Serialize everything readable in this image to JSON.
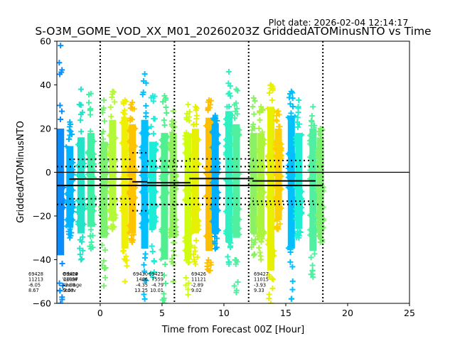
{
  "chart_data": {
    "type": "scatter",
    "title": "S-O3M_GOME_VOD_XX_M01_20260203Z GriddedATOMinusNTO vs Time",
    "plot_date": "Plot date: 2026-02-04 12:14:17",
    "xlabel": "Time from Forecast 00Z [Hour]",
    "ylabel": "GriddedATOMinusNTO",
    "xlim": [
      -3.5,
      25
    ],
    "ylim": [
      -60,
      60
    ],
    "xticks": [
      0,
      5,
      10,
      15,
      20,
      25
    ],
    "xtick_labels": [
      "0",
      "5",
      "10",
      "15",
      "20",
      "25"
    ],
    "yticks": [
      60,
      40,
      20,
      0,
      -20,
      -40,
      -60
    ],
    "ytick_labels": [
      "60",
      "40",
      "20",
      "0",
      "−20",
      "−40",
      "−60"
    ],
    "vertical_dotted_lines_x": [
      0,
      6,
      12,
      18
    ],
    "zero_line": 0,
    "marker": "+",
    "columns": [
      {
        "x": -3.2,
        "color": "#0a8cff",
        "ymin": -60,
        "ymax": 58,
        "core_min": -38,
        "core_max": 20
      },
      {
        "x": -2.45,
        "color": "#00b4ff",
        "ymin": -30,
        "ymax": 23,
        "core_min": -25,
        "core_max": 12
      },
      {
        "x": -1.55,
        "color": "#22e2c8",
        "ymin": -40,
        "ymax": 38,
        "core_min": -28,
        "core_max": 16
      },
      {
        "x": -0.75,
        "color": "#40f0a4",
        "ymin": -35,
        "ymax": 36,
        "core_min": -25,
        "core_max": 18
      },
      {
        "x": 0.3,
        "color": "#7cf070",
        "ymin": -52,
        "ymax": 33,
        "core_min": -30,
        "core_max": 14
      },
      {
        "x": 1.0,
        "color": "#b4f83a",
        "ymin": -26,
        "ymax": 37,
        "core_min": -22,
        "core_max": 24
      },
      {
        "x": 2.0,
        "color": "#eef000",
        "ymin": -50,
        "ymax": 33,
        "core_min": -35,
        "core_max": 25
      },
      {
        "x": 2.6,
        "color": "#ffc400",
        "ymin": -32,
        "ymax": 32,
        "core_min": -28,
        "core_max": 22
      },
      {
        "x": 3.6,
        "color": "#00c0ff",
        "ymin": -58,
        "ymax": 45,
        "core_min": -35,
        "core_max": 24
      },
      {
        "x": 4.25,
        "color": "#1cecd8",
        "ymin": -48,
        "ymax": 35,
        "core_min": -26,
        "core_max": 14
      },
      {
        "x": 5.2,
        "color": "#50f090",
        "ymin": -60,
        "ymax": 35,
        "core_min": -40,
        "core_max": 18
      },
      {
        "x": 5.9,
        "color": "#8cf058",
        "ymin": -50,
        "ymax": 28,
        "core_min": -30,
        "core_max": 18
      },
      {
        "x": 7.1,
        "color": "#d0fc10",
        "ymin": -56,
        "ymax": 31,
        "core_min": -40,
        "core_max": 18
      },
      {
        "x": 7.7,
        "color": "#e6f000",
        "ymin": -42,
        "ymax": 30,
        "core_min": -28,
        "core_max": 20
      },
      {
        "x": 8.8,
        "color": "#ffbe00",
        "ymin": -45,
        "ymax": 33,
        "core_min": -36,
        "core_max": 25
      },
      {
        "x": 9.3,
        "color": "#00b0ff",
        "ymin": -35,
        "ymax": 26,
        "core_min": -28,
        "core_max": 22
      },
      {
        "x": 10.4,
        "color": "#2ef0c0",
        "ymin": -42,
        "ymax": 46,
        "core_min": -32,
        "core_max": 28
      },
      {
        "x": 11.0,
        "color": "#50f0a0",
        "ymin": -55,
        "ymax": 38,
        "core_min": -30,
        "core_max": 22
      },
      {
        "x": 12.4,
        "color": "#8cf064",
        "ymin": -38,
        "ymax": 34,
        "core_min": -28,
        "core_max": 18
      },
      {
        "x": 13.0,
        "color": "#aaf440",
        "ymin": -40,
        "ymax": 30,
        "core_min": -30,
        "core_max": 18
      },
      {
        "x": 13.8,
        "color": "#e6f000",
        "ymin": -60,
        "ymax": 40,
        "core_min": -45,
        "core_max": 30
      },
      {
        "x": 14.4,
        "color": "#ffd000",
        "ymin": -26,
        "ymax": 28,
        "core_min": -22,
        "core_max": 20
      },
      {
        "x": 15.45,
        "color": "#00c0ff",
        "ymin": -58,
        "ymax": 37,
        "core_min": -35,
        "core_max": 26
      },
      {
        "x": 16.05,
        "color": "#1ef0d4",
        "ymin": -30,
        "ymax": 33,
        "core_min": -26,
        "core_max": 18
      },
      {
        "x": 17.2,
        "color": "#50f0a0",
        "ymin": -48,
        "ymax": 30,
        "core_min": -36,
        "core_max": 20
      },
      {
        "x": 17.8,
        "color": "#80f070",
        "ymin": -32,
        "ymax": 20,
        "core_min": -28,
        "core_max": 16
      }
    ],
    "summary_lines": [
      {
        "label": "overall",
        "x_start": -3.5,
        "x_end": 18.0,
        "mean": -6.05,
        "stdev": 8.67
      },
      {
        "label": "69429",
        "x_start": -2.5,
        "x_end": 2.6,
        "mean": -3.08,
        "stdev": 9.03
      },
      {
        "label": "69430",
        "x_start": 2.6,
        "x_end": 3.8,
        "mean": -4.35,
        "stdev": 13.25
      },
      {
        "label": "69425",
        "x_start": 3.8,
        "x_end": 7.3,
        "mean": -4.79,
        "stdev": 10.01
      },
      {
        "label": "69426",
        "x_start": 7.2,
        "x_end": 12.4,
        "mean": -2.89,
        "stdev": 9.02
      },
      {
        "label": "69427",
        "x_start": 12.3,
        "x_end": 17.4,
        "mean": -3.93,
        "stdev": 9.33
      }
    ],
    "annotations": [
      {
        "lines": [
          "69428",
          "11213",
          "-6.05",
          "8.67"
        ]
      },
      {
        "lines": [
          "Orbit#",
          "Valid#",
          "Average",
          "Stdev"
        ]
      },
      {
        "lines": [
          "69429",
          "11087",
          "-3.08",
          "9.03"
        ]
      },
      {
        "lines": [
          "69430",
          "1486",
          "-4.35",
          "13.25"
        ]
      },
      {
        "lines": [
          "69425",
          "7559",
          "-4.79",
          "10.01"
        ]
      },
      {
        "lines": [
          "69426",
          "11121",
          "-2.89",
          "9.02"
        ]
      },
      {
        "lines": [
          "69427",
          "11015",
          "-3.93",
          "9.33"
        ]
      }
    ]
  }
}
